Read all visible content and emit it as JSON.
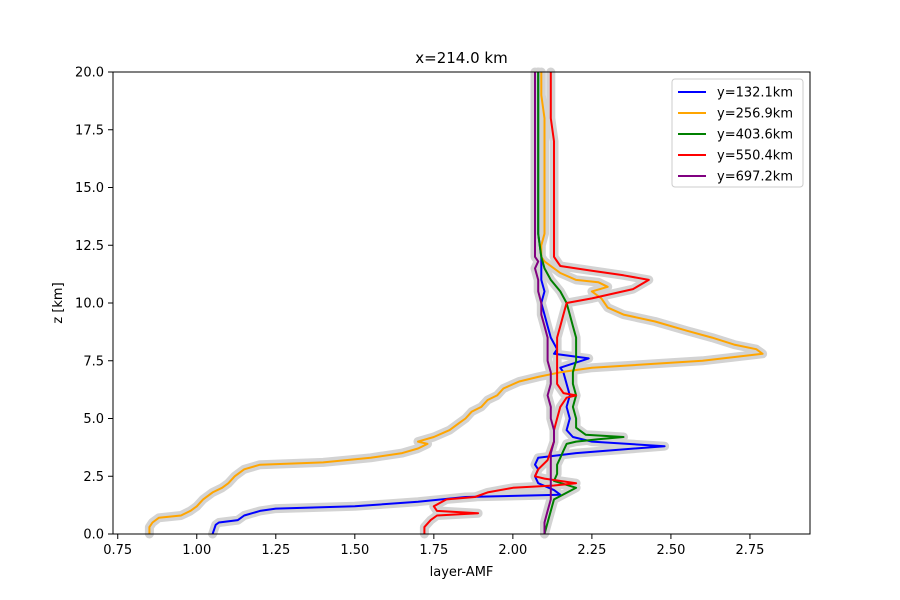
{
  "chart_data": {
    "type": "line",
    "title": "x=214.0 km",
    "xlabel": "layer-AMF",
    "ylabel": "z [km]",
    "xlim": [
      0.735,
      2.94
    ],
    "ylim": [
      0,
      20
    ],
    "xticks": [
      0.75,
      1.0,
      1.25,
      1.5,
      1.75,
      2.0,
      2.25,
      2.5,
      2.75
    ],
    "xtick_labels": [
      "0.75",
      "1.00",
      "1.25",
      "1.50",
      "1.75",
      "2.00",
      "2.25",
      "2.50",
      "2.75"
    ],
    "yticks": [
      0,
      2.5,
      5,
      7.5,
      10,
      12.5,
      15,
      17.5,
      20
    ],
    "ytick_labels": [
      "0.0",
      "2.5",
      "5.0",
      "7.5",
      "10.0",
      "12.5",
      "15.0",
      "17.5",
      "20.0"
    ],
    "grid": false,
    "legend_position": "top-right",
    "uncertainty_band_color": "#d3d3d3",
    "series": [
      {
        "name": "y=132.1km",
        "color": "#0000ff",
        "points": [
          [
            1.05,
            0
          ],
          [
            1.06,
            0.4
          ],
          [
            1.07,
            0.5
          ],
          [
            1.13,
            0.6
          ],
          [
            1.15,
            0.8
          ],
          [
            1.2,
            1.0
          ],
          [
            1.25,
            1.1
          ],
          [
            1.5,
            1.2
          ],
          [
            1.7,
            1.4
          ],
          [
            1.85,
            1.6
          ],
          [
            2.15,
            1.7
          ],
          [
            2.13,
            1.9
          ],
          [
            2.08,
            2.2
          ],
          [
            2.07,
            2.5
          ],
          [
            2.08,
            2.8
          ],
          [
            2.07,
            3.0
          ],
          [
            2.08,
            3.3
          ],
          [
            2.2,
            3.5
          ],
          [
            2.48,
            3.8
          ],
          [
            2.25,
            4.0
          ],
          [
            2.19,
            4.2
          ],
          [
            2.17,
            4.5
          ],
          [
            2.18,
            5.0
          ],
          [
            2.17,
            5.5
          ],
          [
            2.18,
            6.0
          ],
          [
            2.17,
            6.5
          ],
          [
            2.16,
            7.0
          ],
          [
            2.15,
            7.2
          ],
          [
            2.24,
            7.6
          ],
          [
            2.13,
            7.8
          ],
          [
            2.14,
            8.0
          ],
          [
            2.12,
            8.5
          ],
          [
            2.11,
            9.0
          ],
          [
            2.1,
            9.5
          ],
          [
            2.09,
            10.0
          ],
          [
            2.1,
            10.5
          ],
          [
            2.09,
            11.0
          ],
          [
            2.09,
            11.5
          ],
          [
            2.09,
            12.0
          ],
          [
            2.08,
            13.0
          ],
          [
            2.08,
            14.0
          ],
          [
            2.08,
            15.0
          ],
          [
            2.08,
            16.0
          ],
          [
            2.08,
            17.0
          ],
          [
            2.08,
            18.0
          ],
          [
            2.08,
            19.0
          ],
          [
            2.08,
            20.0
          ]
        ]
      },
      {
        "name": "y=256.9km",
        "color": "#ffa500",
        "points": [
          [
            0.85,
            0
          ],
          [
            0.85,
            0.3
          ],
          [
            0.86,
            0.5
          ],
          [
            0.88,
            0.7
          ],
          [
            0.95,
            0.8
          ],
          [
            0.98,
            1.0
          ],
          [
            1.0,
            1.2
          ],
          [
            1.02,
            1.5
          ],
          [
            1.05,
            1.8
          ],
          [
            1.08,
            2.0
          ],
          [
            1.1,
            2.2
          ],
          [
            1.12,
            2.5
          ],
          [
            1.15,
            2.8
          ],
          [
            1.2,
            3.0
          ],
          [
            1.4,
            3.1
          ],
          [
            1.55,
            3.3
          ],
          [
            1.65,
            3.5
          ],
          [
            1.7,
            3.7
          ],
          [
            1.73,
            3.9
          ],
          [
            1.7,
            4.0
          ],
          [
            1.75,
            4.2
          ],
          [
            1.8,
            4.5
          ],
          [
            1.83,
            4.8
          ],
          [
            1.85,
            5.0
          ],
          [
            1.87,
            5.3
          ],
          [
            1.9,
            5.5
          ],
          [
            1.92,
            5.8
          ],
          [
            1.95,
            6.0
          ],
          [
            1.97,
            6.3
          ],
          [
            2.02,
            6.6
          ],
          [
            2.08,
            6.8
          ],
          [
            2.15,
            7.0
          ],
          [
            2.25,
            7.2
          ],
          [
            2.6,
            7.5
          ],
          [
            2.79,
            7.8
          ],
          [
            2.77,
            8.0
          ],
          [
            2.7,
            8.2
          ],
          [
            2.63,
            8.5
          ],
          [
            2.55,
            8.8
          ],
          [
            2.45,
            9.2
          ],
          [
            2.35,
            9.5
          ],
          [
            2.3,
            9.8
          ],
          [
            2.28,
            10.2
          ],
          [
            2.25,
            10.5
          ],
          [
            2.3,
            10.7
          ],
          [
            2.27,
            10.9
          ],
          [
            2.2,
            11.0
          ],
          [
            2.15,
            11.3
          ],
          [
            2.1,
            11.8
          ],
          [
            2.09,
            12.0
          ],
          [
            2.09,
            12.5
          ],
          [
            2.1,
            13.0
          ],
          [
            2.1,
            14.0
          ],
          [
            2.1,
            15.0
          ],
          [
            2.1,
            16.0
          ],
          [
            2.1,
            17.0
          ],
          [
            2.1,
            18.0
          ],
          [
            2.09,
            19.0
          ],
          [
            2.09,
            20.0
          ]
        ]
      },
      {
        "name": "y=403.6km",
        "color": "#008000",
        "points": [
          [
            2.1,
            0
          ],
          [
            2.11,
            0.5
          ],
          [
            2.12,
            1.0
          ],
          [
            2.13,
            1.5
          ],
          [
            2.2,
            2.0
          ],
          [
            2.13,
            2.3
          ],
          [
            2.14,
            2.6
          ],
          [
            2.14,
            3.0
          ],
          [
            2.15,
            3.3
          ],
          [
            2.16,
            3.6
          ],
          [
            2.17,
            3.9
          ],
          [
            2.2,
            4.0
          ],
          [
            2.27,
            4.1
          ],
          [
            2.35,
            4.2
          ],
          [
            2.23,
            4.3
          ],
          [
            2.2,
            4.6
          ],
          [
            2.2,
            5.0
          ],
          [
            2.19,
            5.5
          ],
          [
            2.2,
            6.0
          ],
          [
            2.19,
            6.5
          ],
          [
            2.19,
            7.0
          ],
          [
            2.2,
            7.5
          ],
          [
            2.2,
            8.0
          ],
          [
            2.2,
            8.5
          ],
          [
            2.19,
            9.0
          ],
          [
            2.18,
            9.5
          ],
          [
            2.17,
            10.0
          ],
          [
            2.15,
            10.5
          ],
          [
            2.12,
            11.0
          ],
          [
            2.1,
            11.5
          ],
          [
            2.09,
            12.0
          ],
          [
            2.08,
            13.0
          ],
          [
            2.08,
            14.0
          ],
          [
            2.08,
            15.0
          ],
          [
            2.08,
            16.0
          ],
          [
            2.08,
            17.0
          ],
          [
            2.08,
            18.0
          ],
          [
            2.08,
            19.0
          ],
          [
            2.08,
            20.0
          ]
        ]
      },
      {
        "name": "y=550.4km",
        "color": "#ff0000",
        "points": [
          [
            1.72,
            0
          ],
          [
            1.72,
            0.3
          ],
          [
            1.74,
            0.6
          ],
          [
            1.76,
            0.8
          ],
          [
            1.89,
            0.9
          ],
          [
            1.76,
            1.0
          ],
          [
            1.75,
            1.2
          ],
          [
            1.79,
            1.5
          ],
          [
            1.88,
            1.6
          ],
          [
            1.92,
            1.8
          ],
          [
            2.0,
            2.0
          ],
          [
            2.13,
            2.1
          ],
          [
            2.2,
            2.2
          ],
          [
            2.1,
            2.4
          ],
          [
            2.07,
            2.5
          ],
          [
            2.08,
            2.8
          ],
          [
            2.11,
            3.2
          ],
          [
            2.12,
            3.6
          ],
          [
            2.13,
            4.0
          ],
          [
            2.13,
            4.5
          ],
          [
            2.14,
            5.0
          ],
          [
            2.15,
            5.5
          ],
          [
            2.17,
            5.9
          ],
          [
            2.2,
            6.0
          ],
          [
            2.16,
            6.1
          ],
          [
            2.14,
            6.5
          ],
          [
            2.14,
            7.0
          ],
          [
            2.14,
            7.5
          ],
          [
            2.14,
            8.0
          ],
          [
            2.14,
            8.5
          ],
          [
            2.15,
            9.0
          ],
          [
            2.16,
            9.5
          ],
          [
            2.17,
            10.0
          ],
          [
            2.25,
            10.2
          ],
          [
            2.38,
            10.6
          ],
          [
            2.43,
            11.0
          ],
          [
            2.35,
            11.2
          ],
          [
            2.25,
            11.4
          ],
          [
            2.15,
            11.6
          ],
          [
            2.13,
            12.0
          ],
          [
            2.13,
            13.0
          ],
          [
            2.13,
            14.0
          ],
          [
            2.13,
            15.0
          ],
          [
            2.13,
            16.0
          ],
          [
            2.13,
            17.0
          ],
          [
            2.12,
            18.0
          ],
          [
            2.12,
            19.0
          ],
          [
            2.12,
            20.0
          ]
        ]
      },
      {
        "name": "y=697.2km",
        "color": "#800080",
        "points": [
          [
            2.1,
            0
          ],
          [
            2.1,
            0.5
          ],
          [
            2.11,
            1.0
          ],
          [
            2.12,
            1.5
          ],
          [
            2.12,
            2.0
          ],
          [
            2.12,
            2.5
          ],
          [
            2.12,
            3.0
          ],
          [
            2.12,
            3.5
          ],
          [
            2.13,
            4.0
          ],
          [
            2.13,
            4.5
          ],
          [
            2.12,
            5.0
          ],
          [
            2.12,
            5.5
          ],
          [
            2.11,
            6.0
          ],
          [
            2.12,
            6.5
          ],
          [
            2.12,
            7.0
          ],
          [
            2.11,
            7.5
          ],
          [
            2.11,
            8.0
          ],
          [
            2.11,
            8.5
          ],
          [
            2.1,
            9.0
          ],
          [
            2.09,
            9.5
          ],
          [
            2.09,
            10.0
          ],
          [
            2.08,
            10.5
          ],
          [
            2.08,
            11.0
          ],
          [
            2.07,
            11.5
          ],
          [
            2.08,
            11.8
          ],
          [
            2.07,
            12.0
          ],
          [
            2.07,
            13.0
          ],
          [
            2.07,
            14.0
          ],
          [
            2.07,
            15.0
          ],
          [
            2.07,
            16.0
          ],
          [
            2.07,
            17.0
          ],
          [
            2.07,
            18.0
          ],
          [
            2.07,
            19.0
          ],
          [
            2.07,
            20.0
          ]
        ]
      }
    ]
  }
}
